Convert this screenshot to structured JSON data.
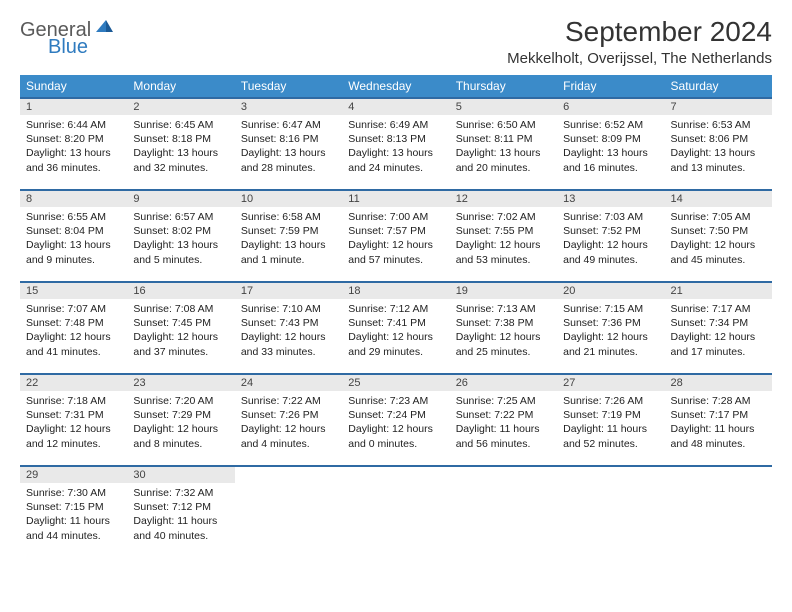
{
  "brand": {
    "line1": "General",
    "line2": "Blue"
  },
  "title": "September 2024",
  "location": "Mekkelholt, Overijssel, The Netherlands",
  "colors": {
    "header_bg": "#3b8bc9",
    "header_text": "#ffffff",
    "daynum_bg": "#e9e9e9",
    "rule": "#2f6aa3",
    "brand_gray": "#5a5a5a",
    "brand_blue": "#2f7bbf"
  },
  "weekdays": [
    "Sunday",
    "Monday",
    "Tuesday",
    "Wednesday",
    "Thursday",
    "Friday",
    "Saturday"
  ],
  "weeks": [
    [
      {
        "n": "1",
        "sunrise": "6:44 AM",
        "sunset": "8:20 PM",
        "daylight": "13 hours and 36 minutes."
      },
      {
        "n": "2",
        "sunrise": "6:45 AM",
        "sunset": "8:18 PM",
        "daylight": "13 hours and 32 minutes."
      },
      {
        "n": "3",
        "sunrise": "6:47 AM",
        "sunset": "8:16 PM",
        "daylight": "13 hours and 28 minutes."
      },
      {
        "n": "4",
        "sunrise": "6:49 AM",
        "sunset": "8:13 PM",
        "daylight": "13 hours and 24 minutes."
      },
      {
        "n": "5",
        "sunrise": "6:50 AM",
        "sunset": "8:11 PM",
        "daylight": "13 hours and 20 minutes."
      },
      {
        "n": "6",
        "sunrise": "6:52 AM",
        "sunset": "8:09 PM",
        "daylight": "13 hours and 16 minutes."
      },
      {
        "n": "7",
        "sunrise": "6:53 AM",
        "sunset": "8:06 PM",
        "daylight": "13 hours and 13 minutes."
      }
    ],
    [
      {
        "n": "8",
        "sunrise": "6:55 AM",
        "sunset": "8:04 PM",
        "daylight": "13 hours and 9 minutes."
      },
      {
        "n": "9",
        "sunrise": "6:57 AM",
        "sunset": "8:02 PM",
        "daylight": "13 hours and 5 minutes."
      },
      {
        "n": "10",
        "sunrise": "6:58 AM",
        "sunset": "7:59 PM",
        "daylight": "13 hours and 1 minute."
      },
      {
        "n": "11",
        "sunrise": "7:00 AM",
        "sunset": "7:57 PM",
        "daylight": "12 hours and 57 minutes."
      },
      {
        "n": "12",
        "sunrise": "7:02 AM",
        "sunset": "7:55 PM",
        "daylight": "12 hours and 53 minutes."
      },
      {
        "n": "13",
        "sunrise": "7:03 AM",
        "sunset": "7:52 PM",
        "daylight": "12 hours and 49 minutes."
      },
      {
        "n": "14",
        "sunrise": "7:05 AM",
        "sunset": "7:50 PM",
        "daylight": "12 hours and 45 minutes."
      }
    ],
    [
      {
        "n": "15",
        "sunrise": "7:07 AM",
        "sunset": "7:48 PM",
        "daylight": "12 hours and 41 minutes."
      },
      {
        "n": "16",
        "sunrise": "7:08 AM",
        "sunset": "7:45 PM",
        "daylight": "12 hours and 37 minutes."
      },
      {
        "n": "17",
        "sunrise": "7:10 AM",
        "sunset": "7:43 PM",
        "daylight": "12 hours and 33 minutes."
      },
      {
        "n": "18",
        "sunrise": "7:12 AM",
        "sunset": "7:41 PM",
        "daylight": "12 hours and 29 minutes."
      },
      {
        "n": "19",
        "sunrise": "7:13 AM",
        "sunset": "7:38 PM",
        "daylight": "12 hours and 25 minutes."
      },
      {
        "n": "20",
        "sunrise": "7:15 AM",
        "sunset": "7:36 PM",
        "daylight": "12 hours and 21 minutes."
      },
      {
        "n": "21",
        "sunrise": "7:17 AM",
        "sunset": "7:34 PM",
        "daylight": "12 hours and 17 minutes."
      }
    ],
    [
      {
        "n": "22",
        "sunrise": "7:18 AM",
        "sunset": "7:31 PM",
        "daylight": "12 hours and 12 minutes."
      },
      {
        "n": "23",
        "sunrise": "7:20 AM",
        "sunset": "7:29 PM",
        "daylight": "12 hours and 8 minutes."
      },
      {
        "n": "24",
        "sunrise": "7:22 AM",
        "sunset": "7:26 PM",
        "daylight": "12 hours and 4 minutes."
      },
      {
        "n": "25",
        "sunrise": "7:23 AM",
        "sunset": "7:24 PM",
        "daylight": "12 hours and 0 minutes."
      },
      {
        "n": "26",
        "sunrise": "7:25 AM",
        "sunset": "7:22 PM",
        "daylight": "11 hours and 56 minutes."
      },
      {
        "n": "27",
        "sunrise": "7:26 AM",
        "sunset": "7:19 PM",
        "daylight": "11 hours and 52 minutes."
      },
      {
        "n": "28",
        "sunrise": "7:28 AM",
        "sunset": "7:17 PM",
        "daylight": "11 hours and 48 minutes."
      }
    ],
    [
      {
        "n": "29",
        "sunrise": "7:30 AM",
        "sunset": "7:15 PM",
        "daylight": "11 hours and 44 minutes."
      },
      {
        "n": "30",
        "sunrise": "7:32 AM",
        "sunset": "7:12 PM",
        "daylight": "11 hours and 40 minutes."
      },
      null,
      null,
      null,
      null,
      null
    ]
  ],
  "labels": {
    "sunrise": "Sunrise: ",
    "sunset": "Sunset: ",
    "daylight": "Daylight: "
  }
}
